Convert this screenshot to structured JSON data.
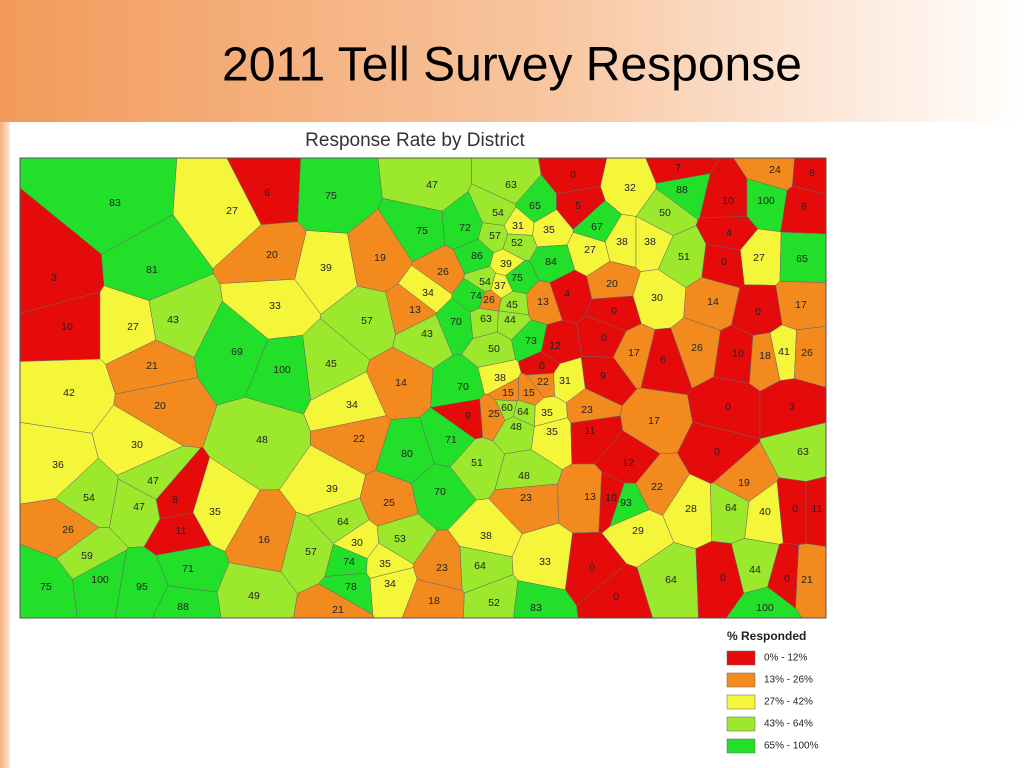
{
  "slide": {
    "title": "2011 Tell Survey Response"
  },
  "map": {
    "title": "Response Rate by District",
    "districts": [
      83,
      27,
      6,
      75,
      47,
      63,
      0,
      32,
      7,
      88,
      24,
      8,
      10,
      100,
      6,
      65,
      5,
      54,
      50,
      67,
      75,
      72,
      31,
      35,
      57,
      52,
      38,
      38,
      27,
      4,
      20,
      39,
      19,
      86,
      39,
      84,
      51,
      0,
      27,
      65,
      3,
      81,
      26,
      54,
      37,
      75,
      20,
      33,
      34,
      74,
      26,
      45,
      13,
      4,
      30,
      14,
      17,
      0,
      13,
      70,
      63,
      44,
      0,
      10,
      27,
      43,
      57,
      43,
      73,
      12,
      0,
      50,
      17,
      6,
      26,
      10,
      18,
      41,
      26,
      69,
      21,
      45,
      100,
      0,
      22,
      31,
      38,
      9,
      14,
      70,
      15,
      15,
      42,
      20,
      34,
      0,
      3,
      60,
      64,
      35,
      23,
      9,
      25,
      17,
      48,
      35,
      11,
      48,
      22,
      71,
      30,
      80,
      0,
      63,
      51,
      12,
      36,
      48,
      47,
      39,
      70,
      22,
      19,
      54,
      23,
      13,
      10,
      93,
      28,
      64,
      40,
      0,
      11,
      47,
      8,
      25,
      35,
      64,
      29,
      26,
      11,
      38,
      53,
      16,
      30,
      57,
      59,
      74,
      35,
      23,
      64,
      33,
      0,
      71,
      75,
      100,
      95,
      34,
      78,
      64,
      0,
      44,
      0,
      21,
      49,
      0,
      18,
      52,
      83,
      88,
      21,
      100
    ],
    "legend": {
      "title": "% Responded",
      "bins": [
        {
          "label": "0% - 12%",
          "color": "#e60b0b",
          "min": 0,
          "max": 12
        },
        {
          "label": "13% - 26%",
          "color": "#f28a1e",
          "min": 13,
          "max": 26
        },
        {
          "label": "27% - 42%",
          "color": "#f5f53a",
          "min": 27,
          "max": 42
        },
        {
          "label": "43% - 64%",
          "color": "#9be82c",
          "min": 43,
          "max": 64
        },
        {
          "label": "65% - 100%",
          "color": "#22e02a",
          "min": 65,
          "max": 100
        }
      ]
    }
  }
}
